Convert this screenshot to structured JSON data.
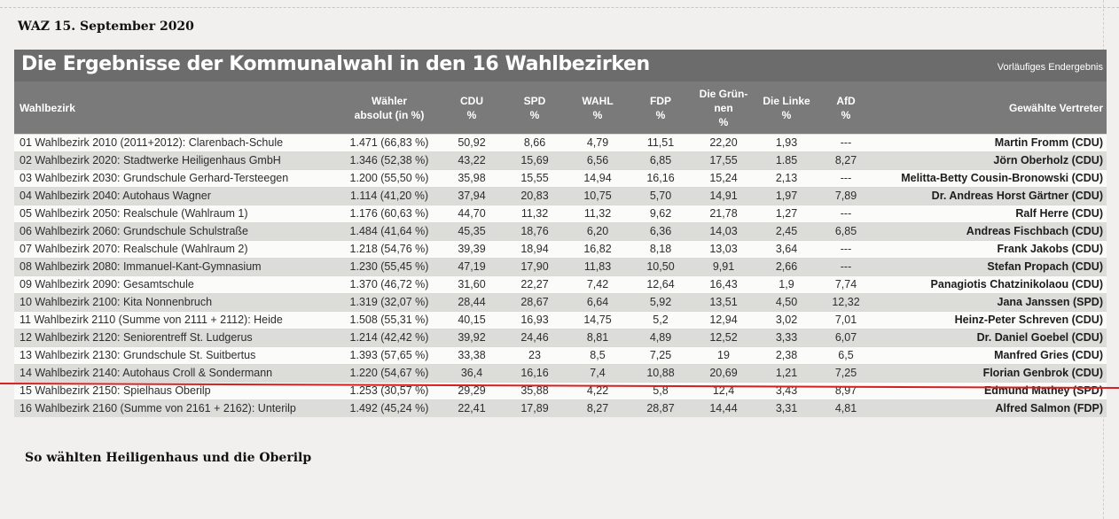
{
  "source": "WAZ 15. September 2020",
  "caption": "So wählten Heiligenhaus und die Oberilp",
  "title": "Die Ergebnisse der Kommunalwahl in den 16 Wahlbezirken",
  "subtitle": "Vorläufiges Endergebnis",
  "columns": [
    "Wahlbezirk",
    "Wähler\nabsolut (in %)",
    "CDU\n%",
    "SPD\n%",
    "WAHL\n%",
    "FDP\n%",
    "Die Grün-\nnen\n%",
    "Die Linke\n%",
    "AfD\n%",
    "Gewählte Vertreter"
  ],
  "rows": [
    [
      "01 Wahlbezirk 2010 (2011+2012): Clarenbach-Schule",
      "1.471 (66,83 %)",
      "50,92",
      "8,66",
      "4,79",
      "11,51",
      "22,20",
      "1,93",
      "---",
      "Martin Fromm (CDU)"
    ],
    [
      "02 Wahlbezirk 2020: Stadtwerke Heiligenhaus GmbH",
      "1.346 (52,38 %)",
      "43,22",
      "15,69",
      "6,56",
      "6,85",
      "17,55",
      "1.85",
      "8,27",
      "Jörn Oberholz (CDU)"
    ],
    [
      "03 Wahlbezirk 2030: Grundschule Gerhard-Tersteegen",
      "1.200 (55,50 %)",
      "35,98",
      "15,55",
      "14,94",
      "16,16",
      "15,24",
      "2,13",
      "---",
      "Melitta-Betty Cousin-Bronowski (CDU)"
    ],
    [
      "04 Wahlbezirk 2040: Autohaus Wagner",
      "1.114 (41,20 %)",
      "37,94",
      "20,83",
      "10,75",
      "5,70",
      "14,91",
      "1,97",
      "7,89",
      "Dr. Andreas Horst Gärtner (CDU)"
    ],
    [
      "05 Wahlbezirk 2050: Realschule (Wahlraum 1)",
      "1.176 (60,63 %)",
      "44,70",
      "11,32",
      "11,32",
      "9,62",
      "21,78",
      "1,27",
      "---",
      "Ralf Herre (CDU)"
    ],
    [
      "06 Wahlbezirk 2060: Grundschule Schulstraße",
      "1.484 (41,64 %)",
      "45,35",
      "18,76",
      "6,20",
      "6,36",
      "14,03",
      "2,45",
      "6,85",
      "Andreas Fischbach (CDU)"
    ],
    [
      "07 Wahlbezirk 2070: Realschule (Wahlraum 2)",
      "1.218 (54,76 %)",
      "39,39",
      "18,94",
      "16,82",
      "8,18",
      "13,03",
      "3,64",
      "---",
      "Frank Jakobs (CDU)"
    ],
    [
      "08 Wahlbezirk 2080: Immanuel-Kant-Gymnasium",
      "1.230 (55,45 %)",
      "47,19",
      "17,90",
      "11,83",
      "10,50",
      "9,91",
      "2,66",
      "---",
      "Stefan Propach (CDU)"
    ],
    [
      "09 Wahlbezirk 2090: Gesamtschule",
      "1.370 (46,72 %)",
      "31,60",
      "22,27",
      "7,42",
      "12,64",
      "16,43",
      "1,9",
      "7,74",
      "Panagiotis Chatzinikolaou (CDU)"
    ],
    [
      "10 Wahlbezirk 2100: Kita Nonnenbruch",
      "1.319 (32,07 %)",
      "28,44",
      "28,67",
      "6,64",
      "5,92",
      "13,51",
      "4,50",
      "12,32",
      "Jana Janssen (SPD)"
    ],
    [
      "11 Wahlbezirk 2110 (Summe von 2111 + 2112): Heide",
      "1.508 (55,31 %)",
      "40,15",
      "16,93",
      "14,75",
      "5,2",
      "12,94",
      "3,02",
      "7,01",
      "Heinz-Peter Schreven (CDU)"
    ],
    [
      "12 Wahlbezirk 2120: Seniorentreff St. Ludgerus",
      "1.214 (42,42 %)",
      "39,92",
      "24,46",
      "8,81",
      "4,89",
      "12,52",
      "3,33",
      "6,07",
      "Dr. Daniel Goebel (CDU)"
    ],
    [
      "13 Wahlbezirk 2130: Grundschule St. Suitbertus",
      "1.393 (57,65 %)",
      "33,38",
      "23",
      "8,5",
      "7,25",
      "19",
      "2,38",
      "6,5",
      "Manfred Gries (CDU)"
    ],
    [
      "14 Wahlbezirk 2140: Autohaus Croll & Sondermann",
      "1.220 (54,67 %)",
      "36,4",
      "16,16",
      "7,4",
      "10,88",
      "20,69",
      "1,21",
      "7,25",
      "Florian Genbrok (CDU)"
    ],
    [
      "15 Wahlbezirk 2150: Spielhaus Oberilp",
      "1.253 (30,57 %)",
      "29,29",
      "35,88",
      "4,22",
      "5,8",
      "12,4",
      "3,43",
      "8,97",
      "Edmund Mathey (SPD)"
    ],
    [
      "16 Wahlbezirk 2160 (Summe von 2161 + 2162): Unterilp",
      "1.492 (45,24 %)",
      "22,41",
      "17,89",
      "8,27",
      "28,87",
      "14,44",
      "3,31",
      "4,81",
      "Alfred Salmon (FDP)"
    ]
  ],
  "colors": {
    "banner": "#6c6c6c",
    "header": "#7a7a7a",
    "row_shade": "#dcdcd9",
    "annotation_line": "#d61f1f"
  }
}
